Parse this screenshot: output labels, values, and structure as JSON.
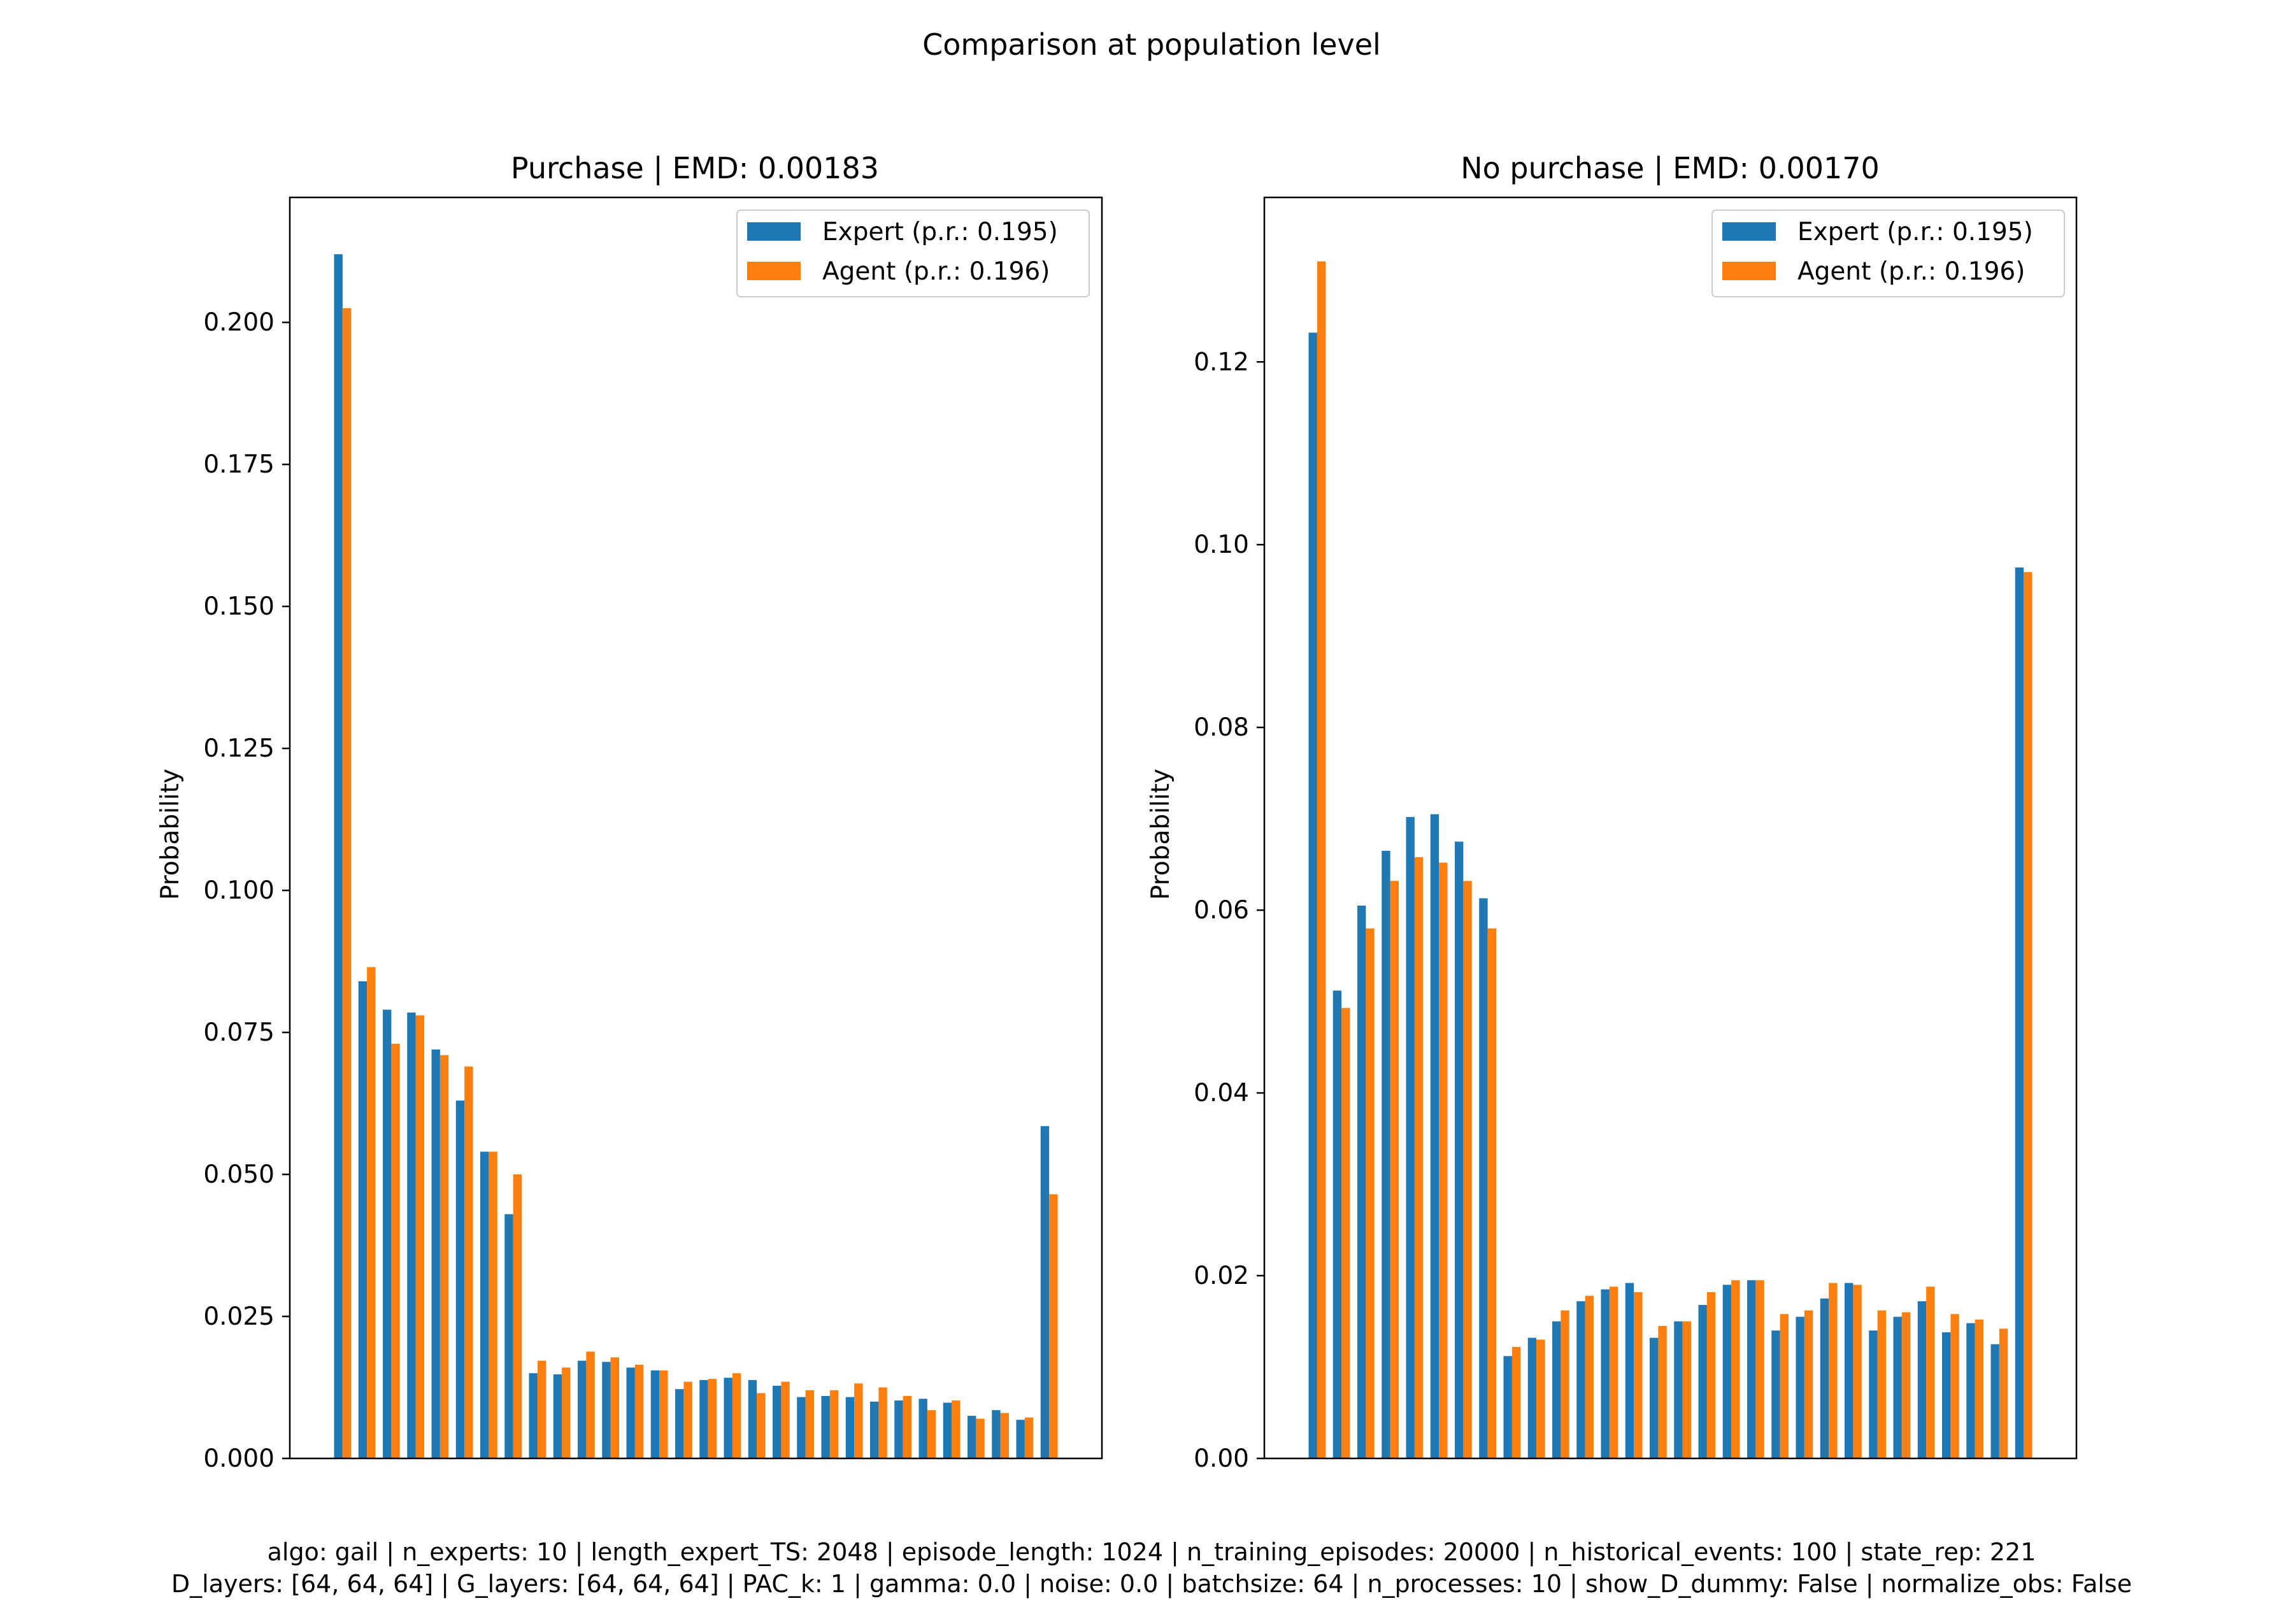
{
  "figure": {
    "suptitle": "Comparison at population level",
    "caption_lines": [
      "algo: gail | n_experts: 10 | length_expert_TS: 2048 | episode_length: 1024 | n_training_episodes: 20000 | n_historical_events: 100 | state_rep: 221",
      "D_layers: [64, 64, 64] | G_layers: [64, 64, 64] | PAC_k: 1 | gamma: 0.0 | noise: 0.0 | batchsize: 64 | n_processes: 10 | show_D_dummy: False | normalize_obs: False"
    ]
  },
  "colors": {
    "expert": "#1f77b4",
    "agent": "#ff7f0e"
  },
  "chart_data": [
    {
      "type": "bar",
      "title": "Purchase | EMD: 0.00183",
      "ylabel": "Probability",
      "xlabel": "",
      "ylim": [
        0,
        0.222
      ],
      "yticks": [
        0.0,
        0.025,
        0.05,
        0.075,
        0.1,
        0.125,
        0.15,
        0.175,
        0.2
      ],
      "ytick_labels": [
        "0.000",
        "0.025",
        "0.050",
        "0.075",
        "0.100",
        "0.125",
        "0.150",
        "0.175",
        "0.200"
      ],
      "legend_position": "upper right",
      "grid": false,
      "series": [
        {
          "name": "Expert (p.r.: 0.195)",
          "values": [
            0.212,
            0.084,
            0.079,
            0.0785,
            0.072,
            0.063,
            0.054,
            0.043,
            0.015,
            0.0148,
            0.0172,
            0.017,
            0.016,
            0.0155,
            0.0122,
            0.0138,
            0.0142,
            0.0138,
            0.0128,
            0.0108,
            0.011,
            0.0108,
            0.01,
            0.0102,
            0.0105,
            0.0098,
            0.0075,
            0.0085,
            0.0068,
            0.0585
          ]
        },
        {
          "name": "Agent (p.r.: 0.196)",
          "values": [
            0.2025,
            0.0865,
            0.073,
            0.078,
            0.071,
            0.069,
            0.054,
            0.05,
            0.0172,
            0.016,
            0.0188,
            0.0178,
            0.0165,
            0.0155,
            0.0135,
            0.014,
            0.015,
            0.0115,
            0.0135,
            0.012,
            0.012,
            0.0132,
            0.0125,
            0.011,
            0.0085,
            0.0102,
            0.007,
            0.008,
            0.0072,
            0.0465
          ]
        }
      ]
    },
    {
      "type": "bar",
      "title": "No purchase | EMD: 0.00170",
      "ylabel": "Probability",
      "xlabel": "",
      "ylim": [
        0,
        0.138
      ],
      "yticks": [
        0.0,
        0.02,
        0.04,
        0.06,
        0.08,
        0.1,
        0.12
      ],
      "ytick_labels": [
        "0.00",
        "0.02",
        "0.04",
        "0.06",
        "0.08",
        "0.10",
        "0.12"
      ],
      "legend_position": "upper right",
      "grid": false,
      "series": [
        {
          "name": "Expert (p.r.: 0.195)",
          "values": [
            0.1232,
            0.0512,
            0.0605,
            0.0665,
            0.0702,
            0.0705,
            0.0675,
            0.0613,
            0.0112,
            0.0132,
            0.015,
            0.0172,
            0.0185,
            0.0192,
            0.0132,
            0.015,
            0.0168,
            0.019,
            0.0195,
            0.014,
            0.0155,
            0.0175,
            0.0192,
            0.014,
            0.0155,
            0.0172,
            0.0138,
            0.0148,
            0.0125,
            0.0975
          ]
        },
        {
          "name": "Agent (p.r.: 0.196)",
          "values": [
            0.131,
            0.0493,
            0.058,
            0.0632,
            0.0658,
            0.0652,
            0.0632,
            0.058,
            0.0122,
            0.013,
            0.0162,
            0.0178,
            0.0188,
            0.0182,
            0.0145,
            0.015,
            0.0182,
            0.0195,
            0.0195,
            0.0158,
            0.0162,
            0.0192,
            0.019,
            0.0162,
            0.016,
            0.0188,
            0.0158,
            0.0152,
            0.0142,
            0.097
          ]
        }
      ]
    }
  ]
}
